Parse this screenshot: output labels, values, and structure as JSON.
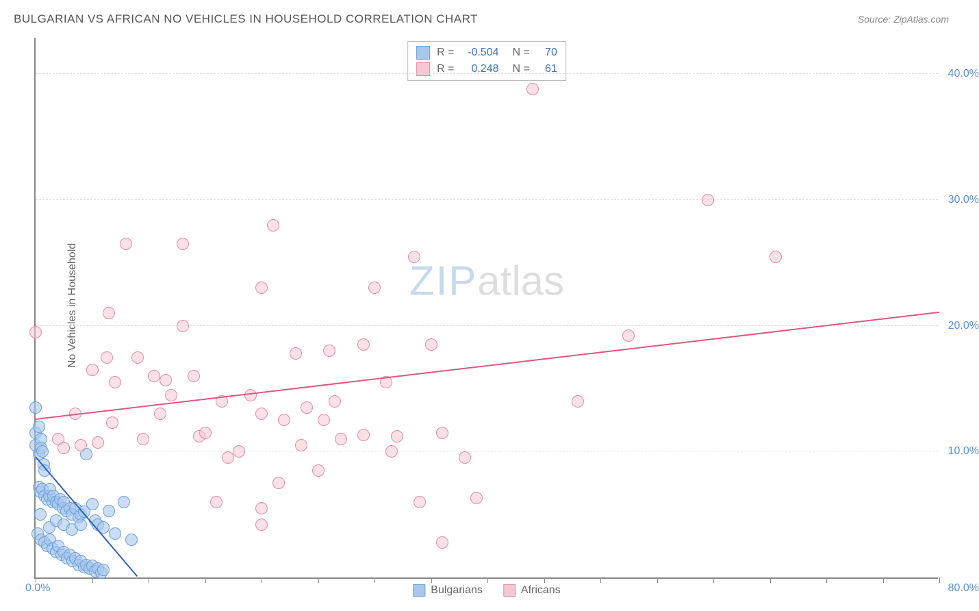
{
  "chart": {
    "type": "scatter",
    "title": "BULGARIAN VS AFRICAN NO VEHICLES IN HOUSEHOLD CORRELATION CHART",
    "source": "Source: ZipAtlas.com",
    "y_axis_title": "No Vehicles in Household",
    "watermark_zip": "ZIP",
    "watermark_atlas": "atlas",
    "background_color": "#ffffff",
    "grid_color": "#dddddd",
    "axis_color": "#888888",
    "label_color": "#5a8fd6",
    "xlim": [
      0,
      80
    ],
    "ylim": [
      0,
      43
    ],
    "x_ticks": [
      0,
      5,
      10,
      15,
      20,
      25,
      30,
      35,
      40,
      45,
      50,
      55,
      60,
      65,
      70,
      75,
      80
    ],
    "x_tick_labels": {
      "0": "0.0%",
      "80": "80.0%"
    },
    "y_gridlines": [
      10,
      20,
      30,
      40
    ],
    "y_tick_labels": {
      "10": "10.0%",
      "20": "20.0%",
      "30": "30.0%",
      "40": "40.0%"
    },
    "marker_radius": 9,
    "marker_stroke_width": 1.5,
    "trend_line_width": 2,
    "legend": {
      "items": [
        {
          "swatch_fill": "#a9c7ec",
          "swatch_border": "#6a9fd8",
          "r_label": "R =",
          "r_value": "-0.504",
          "n_label": "N =",
          "n_value": "70"
        },
        {
          "swatch_fill": "#f5c6d3",
          "swatch_border": "#e68aa5",
          "r_label": "R =",
          "r_value": "0.248",
          "n_label": "N =",
          "n_value": "61"
        }
      ]
    },
    "bottom_legend": [
      {
        "swatch_fill": "#a9c7ec",
        "swatch_border": "#6a9fd8",
        "label": "Bulgarians"
      },
      {
        "swatch_fill": "#f5c6d3",
        "swatch_border": "#e68aa5",
        "label": "Africans"
      }
    ],
    "series": [
      {
        "name": "Bulgarians",
        "marker_fill": "rgba(169,199,236,0.6)",
        "marker_stroke": "#6a9fd8",
        "trend_color": "#2b5fc0",
        "trend": {
          "x1": 0,
          "y1": 9.5,
          "x2": 9,
          "y2": 0
        },
        "points": [
          [
            0,
            13.5
          ],
          [
            0,
            11.5
          ],
          [
            0,
            10.5
          ],
          [
            0.3,
            12
          ],
          [
            0.3,
            9.8
          ],
          [
            0.5,
            11
          ],
          [
            0.5,
            10.3
          ],
          [
            0.6,
            10
          ],
          [
            0.7,
            9
          ],
          [
            0.8,
            8.5
          ],
          [
            0.3,
            7.2
          ],
          [
            0.4,
            6.8
          ],
          [
            0.6,
            7
          ],
          [
            0.8,
            6.5
          ],
          [
            1,
            6.2
          ],
          [
            1.2,
            6.5
          ],
          [
            1.3,
            7
          ],
          [
            1.5,
            6
          ],
          [
            1.6,
            6.5
          ],
          [
            1.8,
            6
          ],
          [
            2,
            5.8
          ],
          [
            2.2,
            6.2
          ],
          [
            2.4,
            5.5
          ],
          [
            2.5,
            6
          ],
          [
            2.7,
            5.3
          ],
          [
            3,
            5.5
          ],
          [
            3.2,
            5
          ],
          [
            3.5,
            5.5
          ],
          [
            3.8,
            4.8
          ],
          [
            4,
            5
          ],
          [
            4.3,
            5.2
          ],
          [
            4.5,
            9.8
          ],
          [
            5,
            5.8
          ],
          [
            5.3,
            4.5
          ],
          [
            5.5,
            4.2
          ],
          [
            6,
            4
          ],
          [
            6.5,
            5.3
          ],
          [
            7,
            3.5
          ],
          [
            7.8,
            6
          ],
          [
            8.5,
            3
          ],
          [
            0.2,
            3.5
          ],
          [
            0.5,
            3
          ],
          [
            0.8,
            2.8
          ],
          [
            1,
            2.5
          ],
          [
            1.3,
            3
          ],
          [
            1.5,
            2.3
          ],
          [
            1.8,
            2
          ],
          [
            2,
            2.5
          ],
          [
            2.3,
            1.8
          ],
          [
            2.5,
            2
          ],
          [
            2.8,
            1.5
          ],
          [
            3,
            1.8
          ],
          [
            3.3,
            1.3
          ],
          [
            3.5,
            1.5
          ],
          [
            3.8,
            1
          ],
          [
            4,
            1.3
          ],
          [
            4.3,
            0.8
          ],
          [
            4.5,
            1
          ],
          [
            4.8,
            0.7
          ],
          [
            5,
            0.9
          ],
          [
            5.3,
            0.5
          ],
          [
            5.5,
            0.7
          ],
          [
            5.8,
            0.4
          ],
          [
            6,
            0.6
          ],
          [
            1.2,
            4
          ],
          [
            1.8,
            4.5
          ],
          [
            2.5,
            4.2
          ],
          [
            3.2,
            3.8
          ],
          [
            4,
            4.2
          ],
          [
            0.4,
            5
          ]
        ]
      },
      {
        "name": "Africans",
        "marker_fill": "rgba(245,198,211,0.55)",
        "marker_stroke": "#e68aa5",
        "trend_color": "#e0567f",
        "trend": {
          "x1": 0,
          "y1": 12.5,
          "x2": 80,
          "y2": 21
        },
        "points": [
          [
            0,
            19.5
          ],
          [
            2,
            11
          ],
          [
            2.5,
            10.3
          ],
          [
            3.5,
            13
          ],
          [
            4,
            10.5
          ],
          [
            5,
            16.5
          ],
          [
            5.5,
            10.7
          ],
          [
            6.3,
            17.5
          ],
          [
            6.5,
            21
          ],
          [
            7,
            15.5
          ],
          [
            8,
            26.5
          ],
          [
            9,
            17.5
          ],
          [
            9.5,
            11
          ],
          [
            10.5,
            16
          ],
          [
            11,
            13
          ],
          [
            11.5,
            15.7
          ],
          [
            13,
            26.5
          ],
          [
            13,
            20
          ],
          [
            14,
            16
          ],
          [
            14.5,
            11.2
          ],
          [
            15,
            11.5
          ],
          [
            16,
            6
          ],
          [
            16.5,
            14
          ],
          [
            17,
            9.5
          ],
          [
            18,
            10
          ],
          [
            20,
            23
          ],
          [
            20,
            13
          ],
          [
            20,
            5.5
          ],
          [
            20,
            4.2
          ],
          [
            21,
            28
          ],
          [
            22,
            12.5
          ],
          [
            23,
            17.8
          ],
          [
            23.5,
            10.5
          ],
          [
            24,
            13.5
          ],
          [
            25,
            8.5
          ],
          [
            26,
            18
          ],
          [
            26.5,
            14
          ],
          [
            27,
            11
          ],
          [
            29,
            18.5
          ],
          [
            29,
            11.3
          ],
          [
            30,
            23
          ],
          [
            31,
            15.5
          ],
          [
            32,
            11.2
          ],
          [
            33.5,
            25.5
          ],
          [
            34,
            6
          ],
          [
            35,
            18.5
          ],
          [
            36,
            11.5
          ],
          [
            36,
            2.8
          ],
          [
            39,
            6.3
          ],
          [
            44,
            38.8
          ],
          [
            48,
            14
          ],
          [
            52.5,
            19.2
          ],
          [
            59.5,
            30
          ],
          [
            65.5,
            25.5
          ],
          [
            6.8,
            12.3
          ],
          [
            12,
            14.5
          ],
          [
            19,
            14.5
          ],
          [
            21.5,
            7.5
          ],
          [
            25.5,
            12.5
          ],
          [
            31.5,
            10
          ],
          [
            38,
            9.5
          ]
        ]
      }
    ]
  }
}
